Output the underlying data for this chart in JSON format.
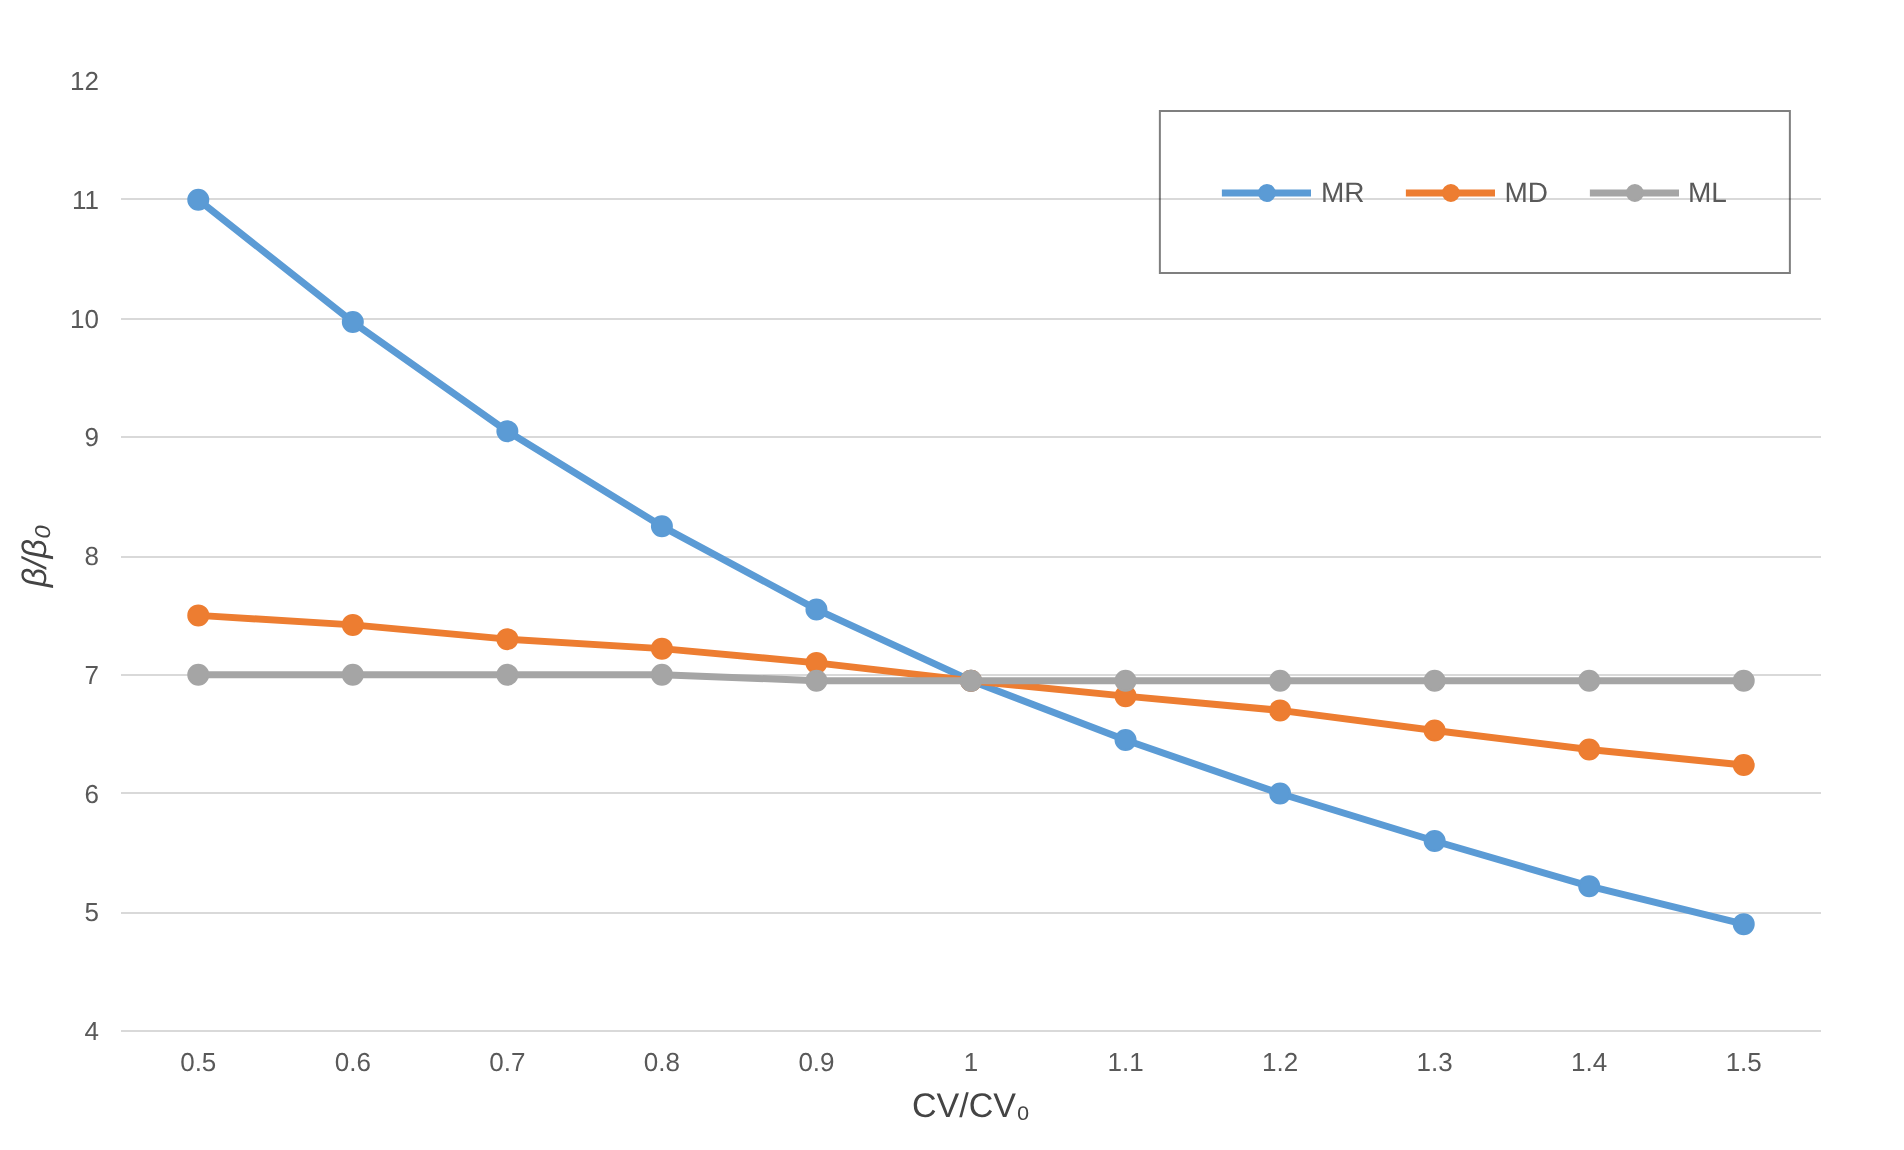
{
  "chart_data": {
    "type": "line",
    "xlabel": "CV/CV₀",
    "ylabel": "β/β₀",
    "categories": [
      "0.5",
      "0.6",
      "0.7",
      "0.8",
      "0.9",
      "1",
      "1.1",
      "1.2",
      "1.3",
      "1.4",
      "1.5"
    ],
    "series": [
      {
        "name": "MR",
        "color": "#5b9bd5",
        "values": [
          11.0,
          9.97,
          9.05,
          8.25,
          7.55,
          6.95,
          6.45,
          6.0,
          5.6,
          5.22,
          4.9
        ]
      },
      {
        "name": "MD",
        "color": "#ed7d31",
        "values": [
          7.5,
          7.42,
          7.3,
          7.22,
          7.1,
          6.95,
          6.82,
          6.7,
          6.53,
          6.37,
          6.24
        ]
      },
      {
        "name": "ML",
        "color": "#a5a5a5",
        "values": [
          7.0,
          7.0,
          7.0,
          7.0,
          6.95,
          6.95,
          6.95,
          6.95,
          6.95,
          6.95,
          6.95
        ]
      }
    ],
    "ylim": [
      4,
      12
    ],
    "yticks": [
      4,
      5,
      6,
      7,
      8,
      9,
      10,
      11,
      12
    ],
    "grid": "y",
    "legend": "top right",
    "marker": "circle",
    "line_style": "solid"
  }
}
